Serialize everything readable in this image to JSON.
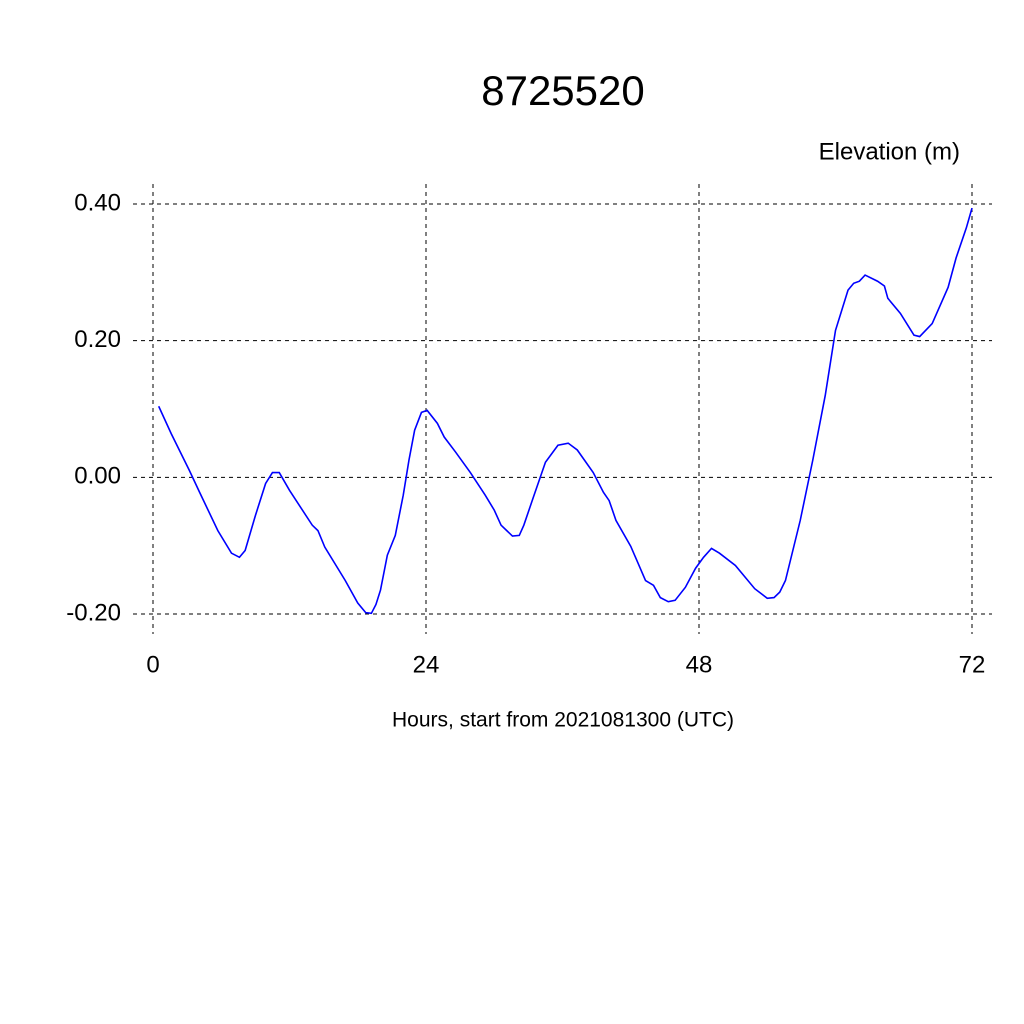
{
  "chart_data": {
    "type": "line",
    "title": "8725520",
    "y_label": "Elevation (m)",
    "x_label": "Hours, start from 2021081300 (UTC)",
    "xlim": [
      0,
      72
    ],
    "ylim": [
      -0.2,
      0.4
    ],
    "xticks": [
      0,
      24,
      48,
      72
    ],
    "yticks": [
      {
        "value": -0.2,
        "label": "-0.20"
      },
      {
        "value": 0,
        "label": "0.00"
      },
      {
        "value": 0.2,
        "label": "0.20"
      },
      {
        "value": 0.4,
        "label": "0.40"
      }
    ],
    "grid": true,
    "x": [
      0.5,
      1.6,
      3.2,
      4.1,
      5.7,
      6.9,
      7.6,
      8.1,
      9,
      9.9,
      10.5,
      11.1,
      12,
      14,
      14.5,
      15.1,
      16.9,
      18,
      18.7,
      19.2,
      19.6,
      20,
      20.6,
      21.3,
      22,
      22.5,
      23,
      23.6,
      24.1,
      25,
      25.6,
      26.6,
      27.9,
      29.2,
      30,
      30.6,
      31.1,
      31.6,
      32.2,
      32.6,
      33.4,
      34.5,
      35.6,
      36.5,
      37.3,
      38.7,
      39.6,
      40.1,
      40.7,
      42,
      43.3,
      44,
      44.6,
      45.3,
      45.9,
      46.8,
      47.7,
      48.4,
      49.1,
      49.8,
      51.2,
      52.9,
      54,
      54.6,
      55.1,
      55.6,
      56.9,
      58,
      59.1,
      60,
      61.1,
      61.6,
      62.1,
      62.6,
      63.7,
      64.3,
      64.6,
      65.7,
      66.9,
      67.4,
      68.5,
      69.9,
      70.6,
      71.5,
      72
    ],
    "series": [
      {
        "color": "#0000ff",
        "values": [
          0.104,
          0.064,
          0.01,
          -0.022,
          -0.078,
          -0.111,
          -0.117,
          -0.107,
          -0.056,
          -0.009,
          0.007,
          0.007,
          -0.019,
          -0.07,
          -0.078,
          -0.102,
          -0.151,
          -0.184,
          -0.198,
          -0.199,
          -0.186,
          -0.165,
          -0.114,
          -0.085,
          -0.026,
          0.025,
          0.069,
          0.095,
          0.098,
          0.079,
          0.059,
          0.037,
          0.007,
          -0.026,
          -0.048,
          -0.07,
          -0.078,
          -0.086,
          -0.085,
          -0.07,
          -0.031,
          0.022,
          0.047,
          0.05,
          0.04,
          0.007,
          -0.022,
          -0.034,
          -0.063,
          -0.101,
          -0.151,
          -0.158,
          -0.176,
          -0.182,
          -0.18,
          -0.161,
          -0.133,
          -0.117,
          -0.104,
          -0.111,
          -0.129,
          -0.163,
          -0.177,
          -0.176,
          -0.168,
          -0.151,
          -0.063,
          0.025,
          0.12,
          0.215,
          0.274,
          0.284,
          0.287,
          0.296,
          0.287,
          0.28,
          0.262,
          0.24,
          0.208,
          0.206,
          0.225,
          0.278,
          0.321,
          0.365,
          0.394
        ]
      }
    ]
  }
}
